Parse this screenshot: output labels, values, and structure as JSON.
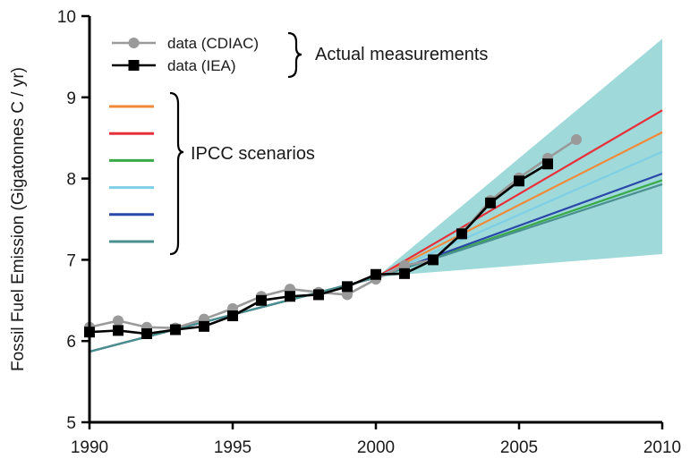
{
  "chart_data": {
    "type": "line",
    "ylabel": "Fossil Fuel Emission (Gigatonnes C / yr)",
    "xlim": [
      1990,
      2010
    ],
    "ylim": [
      5,
      10
    ],
    "x_ticks": [
      1990,
      1995,
      2000,
      2005,
      2010
    ],
    "y_ticks": [
      5,
      6,
      7,
      8,
      9,
      10
    ],
    "grid": false,
    "legend_position": "top-left",
    "band": {
      "color": "#9fd9d9",
      "lower": [
        [
          1990,
          5.87
        ],
        [
          2000,
          6.78
        ],
        [
          2001,
          6.82
        ],
        [
          2010,
          7.07
        ]
      ],
      "upper": [
        [
          1990,
          5.87
        ],
        [
          2000,
          6.78
        ],
        [
          2010,
          9.72
        ]
      ]
    },
    "series": [
      {
        "name": "data (CDIAC)",
        "kind": "measured",
        "color": "#9a9a9a",
        "marker": "circle",
        "x": [
          1990,
          1991,
          1992,
          1993,
          1994,
          1995,
          1996,
          1997,
          1998,
          1999,
          2000,
          2001,
          2002,
          2003,
          2004,
          2005,
          2006,
          2007
        ],
        "y": [
          6.17,
          6.25,
          6.17,
          6.16,
          6.27,
          6.4,
          6.55,
          6.64,
          6.6,
          6.57,
          6.76,
          6.93,
          7.0,
          7.33,
          7.73,
          8.01,
          8.25,
          8.48
        ]
      },
      {
        "name": "data (IEA)",
        "kind": "measured",
        "color": "#000000",
        "marker": "square",
        "x": [
          1990,
          1991,
          1992,
          1993,
          1994,
          1995,
          1996,
          1997,
          1998,
          1999,
          2000,
          2001,
          2002,
          2003,
          2004,
          2005,
          2006
        ],
        "y": [
          6.11,
          6.13,
          6.09,
          6.14,
          6.18,
          6.31,
          6.5,
          6.55,
          6.57,
          6.67,
          6.82,
          6.83,
          7.0,
          7.32,
          7.7,
          7.97,
          8.18
        ]
      },
      {
        "kind": "scenario",
        "color": "#f08a3a",
        "x": [
          1990,
          2000,
          2010
        ],
        "y": [
          5.87,
          6.78,
          8.57
        ]
      },
      {
        "kind": "scenario",
        "color": "#e8303a",
        "x": [
          1990,
          2000,
          2010
        ],
        "y": [
          5.87,
          6.78,
          8.84
        ]
      },
      {
        "kind": "scenario",
        "color": "#3aaa48",
        "x": [
          1990,
          2000,
          2010
        ],
        "y": [
          5.87,
          6.78,
          7.98
        ]
      },
      {
        "kind": "scenario",
        "color": "#7fcfe6",
        "x": [
          1990,
          2000,
          2010
        ],
        "y": [
          5.87,
          6.78,
          8.33
        ]
      },
      {
        "kind": "scenario",
        "color": "#2a48a8",
        "x": [
          1990,
          2000,
          2010
        ],
        "y": [
          5.87,
          6.78,
          8.06
        ]
      },
      {
        "kind": "scenario",
        "color": "#4a9090",
        "x": [
          1990,
          2000,
          2010
        ],
        "y": [
          5.87,
          6.78,
          7.93
        ]
      }
    ],
    "legend": {
      "measured_group_label": "Actual measurements",
      "scenario_group_label": "IPCC scenarios",
      "scenario_colors": [
        "#f08a3a",
        "#e8303a",
        "#3aaa48",
        "#7fcfe6",
        "#2a48a8",
        "#4a9090"
      ]
    }
  }
}
